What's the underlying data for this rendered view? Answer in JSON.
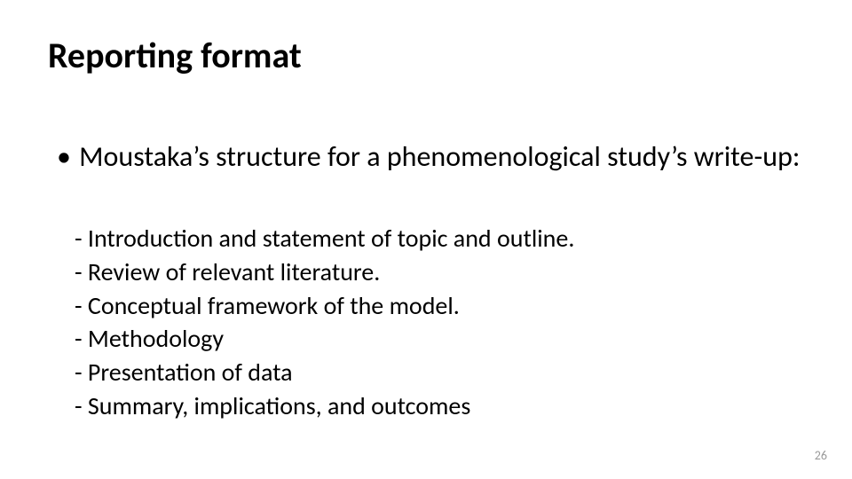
{
  "slide": {
    "title": "Reporting format",
    "title_fontsize": 40,
    "title_fontweight": 700,
    "main_bullet": "Moustaka’s structure for a phenomenological study’s write-up:",
    "main_bullet_fontsize": 32,
    "sub_items": [
      "- Introduction and statement of topic and outline.",
      "- Review of relevant literature.",
      "- Conceptual framework of the model.",
      "- Methodology",
      "- Presentation of data",
      "- Summary, implications, and outcomes"
    ],
    "sub_fontsize": 28,
    "page_number": "26",
    "page_number_fontsize": 14,
    "page_number_color": "#9a9a9a",
    "background_color": "#ffffff",
    "text_color": "#000000"
  }
}
